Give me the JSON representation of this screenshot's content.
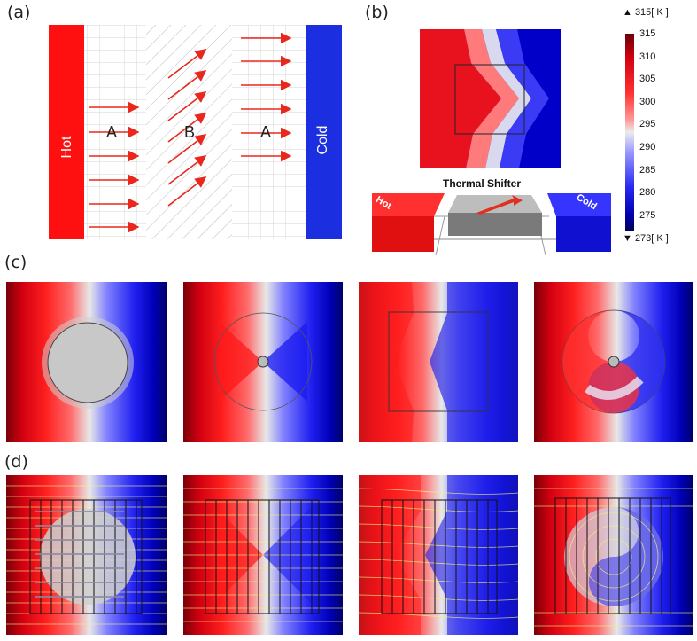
{
  "panel_labels": {
    "a": "(a)",
    "b": "(b)",
    "c": "(c)",
    "d": "(d)"
  },
  "panel_a": {
    "hot_label": "Hot",
    "cold_label": "Cold",
    "region_left": "A",
    "region_mid": "B",
    "region_right": "A"
  },
  "panel_b": {
    "device_title": "Thermal Shifter",
    "hot_block_label": "Hot",
    "cold_block_label": "Cold"
  },
  "colorbar": {
    "max_marker": "▲ 315[ K ]",
    "min_marker": "▼ 273[ K ]",
    "ticks": [
      "315",
      "310",
      "305",
      "300",
      "295",
      "290",
      "285",
      "280",
      "275"
    ]
  },
  "colors": {
    "hot": "#ff1010",
    "cold": "#1c2fe0",
    "arrow": "#e8281c"
  }
}
